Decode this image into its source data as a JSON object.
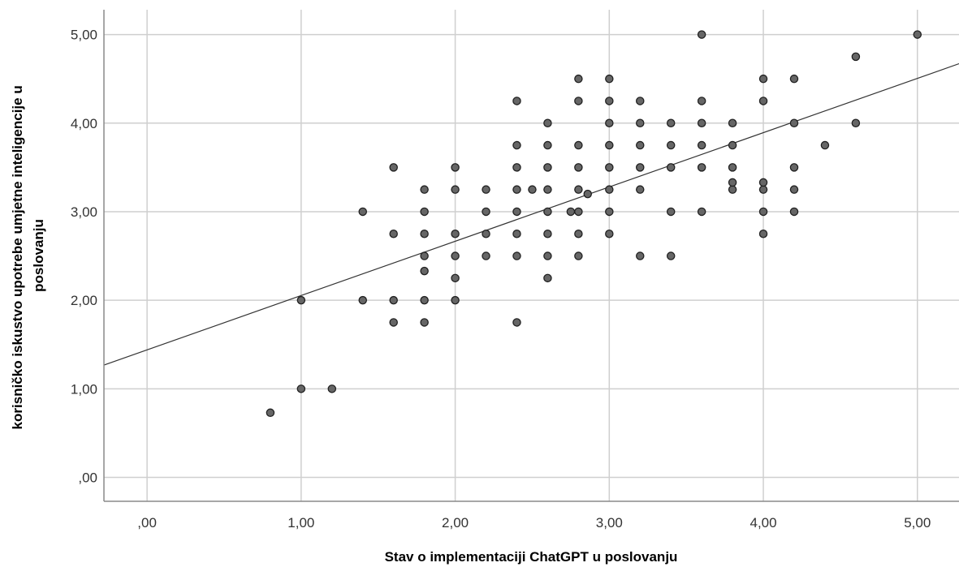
{
  "chart_data": {
    "type": "scatter",
    "xlabel": "Stav o implementaciji ChatGPT u poslovanju",
    "ylabel_lines": [
      "korisničko iskustvo upotrebe umjetne inteligencije u",
      "poslovanju"
    ],
    "xlim": [
      -0.28,
      5.27
    ],
    "ylim": [
      -0.27,
      5.28
    ],
    "x_ticks": [
      0,
      1,
      2,
      3,
      4,
      5
    ],
    "x_tick_labels": [
      ",00",
      "1,00",
      "2,00",
      "3,00",
      "4,00",
      "5,00"
    ],
    "y_ticks": [
      0,
      1,
      2,
      3,
      4,
      5
    ],
    "y_tick_labels": [
      ",00",
      "1,00",
      "2,00",
      "3,00",
      "4,00",
      "5,00"
    ],
    "grid": true,
    "fit_line": {
      "intercept": 1.44,
      "slope": 0.613
    },
    "points": [
      {
        "x": 0.8,
        "y": 0.73
      },
      {
        "x": 1.0,
        "y": 1.0
      },
      {
        "x": 1.2,
        "y": 1.0
      },
      {
        "x": 1.0,
        "y": 2.0
      },
      {
        "x": 1.4,
        "y": 2.0
      },
      {
        "x": 1.4,
        "y": 3.0
      },
      {
        "x": 1.6,
        "y": 1.75
      },
      {
        "x": 1.6,
        "y": 2.0
      },
      {
        "x": 1.6,
        "y": 2.75
      },
      {
        "x": 1.6,
        "y": 3.5
      },
      {
        "x": 1.8,
        "y": 1.75
      },
      {
        "x": 1.8,
        "y": 2.0
      },
      {
        "x": 1.8,
        "y": 2.33
      },
      {
        "x": 1.8,
        "y": 2.5
      },
      {
        "x": 1.8,
        "y": 2.75
      },
      {
        "x": 1.8,
        "y": 3.0
      },
      {
        "x": 1.8,
        "y": 3.25
      },
      {
        "x": 2.0,
        "y": 2.0
      },
      {
        "x": 2.0,
        "y": 2.25
      },
      {
        "x": 2.0,
        "y": 2.5
      },
      {
        "x": 2.0,
        "y": 2.75
      },
      {
        "x": 2.0,
        "y": 3.25
      },
      {
        "x": 2.0,
        "y": 3.5
      },
      {
        "x": 2.2,
        "y": 2.5
      },
      {
        "x": 2.2,
        "y": 2.75
      },
      {
        "x": 2.2,
        "y": 3.0
      },
      {
        "x": 2.2,
        "y": 3.25
      },
      {
        "x": 2.4,
        "y": 1.75
      },
      {
        "x": 2.4,
        "y": 2.5
      },
      {
        "x": 2.4,
        "y": 2.75
      },
      {
        "x": 2.4,
        "y": 3.0
      },
      {
        "x": 2.4,
        "y": 3.25
      },
      {
        "x": 2.4,
        "y": 3.5
      },
      {
        "x": 2.4,
        "y": 3.75
      },
      {
        "x": 2.4,
        "y": 4.25
      },
      {
        "x": 2.5,
        "y": 3.25
      },
      {
        "x": 2.6,
        "y": 2.25
      },
      {
        "x": 2.6,
        "y": 2.5
      },
      {
        "x": 2.6,
        "y": 2.75
      },
      {
        "x": 2.6,
        "y": 3.0
      },
      {
        "x": 2.6,
        "y": 3.25
      },
      {
        "x": 2.6,
        "y": 3.5
      },
      {
        "x": 2.6,
        "y": 3.75
      },
      {
        "x": 2.6,
        "y": 4.0
      },
      {
        "x": 2.75,
        "y": 3.0
      },
      {
        "x": 2.8,
        "y": 2.5
      },
      {
        "x": 2.8,
        "y": 2.75
      },
      {
        "x": 2.8,
        "y": 3.0
      },
      {
        "x": 2.8,
        "y": 3.25
      },
      {
        "x": 2.8,
        "y": 3.5
      },
      {
        "x": 2.8,
        "y": 3.75
      },
      {
        "x": 2.8,
        "y": 4.25
      },
      {
        "x": 2.8,
        "y": 4.5
      },
      {
        "x": 2.86,
        "y": 3.2
      },
      {
        "x": 3.0,
        "y": 2.75
      },
      {
        "x": 3.0,
        "y": 3.0
      },
      {
        "x": 3.0,
        "y": 3.25
      },
      {
        "x": 3.0,
        "y": 3.5
      },
      {
        "x": 3.0,
        "y": 3.75
      },
      {
        "x": 3.0,
        "y": 4.0
      },
      {
        "x": 3.0,
        "y": 4.25
      },
      {
        "x": 3.0,
        "y": 4.5
      },
      {
        "x": 3.2,
        "y": 2.5
      },
      {
        "x": 3.2,
        "y": 3.25
      },
      {
        "x": 3.2,
        "y": 3.5
      },
      {
        "x": 3.2,
        "y": 3.75
      },
      {
        "x": 3.2,
        "y": 4.0
      },
      {
        "x": 3.2,
        "y": 4.25
      },
      {
        "x": 3.4,
        "y": 2.5
      },
      {
        "x": 3.4,
        "y": 3.0
      },
      {
        "x": 3.4,
        "y": 3.5
      },
      {
        "x": 3.4,
        "y": 3.75
      },
      {
        "x": 3.4,
        "y": 4.0
      },
      {
        "x": 3.6,
        "y": 3.0
      },
      {
        "x": 3.6,
        "y": 3.5
      },
      {
        "x": 3.6,
        "y": 3.75
      },
      {
        "x": 3.6,
        "y": 4.0
      },
      {
        "x": 3.6,
        "y": 4.25
      },
      {
        "x": 3.6,
        "y": 5.0
      },
      {
        "x": 3.8,
        "y": 3.25
      },
      {
        "x": 3.8,
        "y": 3.33
      },
      {
        "x": 3.8,
        "y": 3.5
      },
      {
        "x": 3.8,
        "y": 3.75
      },
      {
        "x": 3.8,
        "y": 4.0
      },
      {
        "x": 4.0,
        "y": 2.75
      },
      {
        "x": 4.0,
        "y": 3.0
      },
      {
        "x": 4.0,
        "y": 3.25
      },
      {
        "x": 4.0,
        "y": 3.33
      },
      {
        "x": 4.0,
        "y": 4.25
      },
      {
        "x": 4.0,
        "y": 4.5
      },
      {
        "x": 4.2,
        "y": 3.0
      },
      {
        "x": 4.2,
        "y": 3.25
      },
      {
        "x": 4.2,
        "y": 3.5
      },
      {
        "x": 4.2,
        "y": 4.0
      },
      {
        "x": 4.2,
        "y": 4.5
      },
      {
        "x": 4.4,
        "y": 3.75
      },
      {
        "x": 4.6,
        "y": 4.0
      },
      {
        "x": 4.6,
        "y": 4.75
      },
      {
        "x": 5.0,
        "y": 5.0
      }
    ]
  }
}
